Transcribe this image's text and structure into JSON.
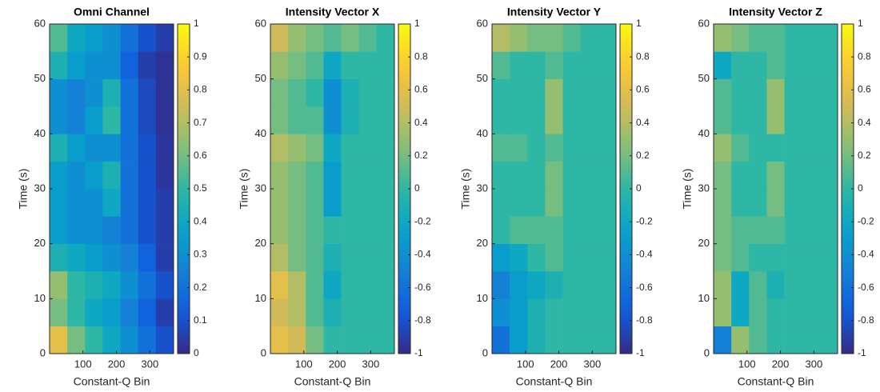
{
  "chart_data": [
    {
      "type": "heatmap",
      "title": "Omni Channel",
      "xlabel": "Constant-Q Bin",
      "ylabel": "Time (s)",
      "colormap": "parula",
      "x": [
        26.5,
        79.5,
        132.5,
        185.5,
        238.5,
        291.5,
        344.5
      ],
      "y": [
        2.5,
        7.5,
        12.5,
        17.5,
        22.5,
        27.5,
        32.5,
        37.5,
        42.5,
        47.5,
        52.5,
        57.5
      ],
      "values": [
        [
          0.8,
          0.6,
          0.5,
          0.4,
          0.3,
          0.2,
          0.1
        ],
        [
          0.6,
          0.5,
          0.4,
          0.35,
          0.25,
          0.15,
          0.05
        ],
        [
          0.65,
          0.5,
          0.45,
          0.4,
          0.3,
          0.2,
          0.1
        ],
        [
          0.45,
          0.4,
          0.35,
          0.3,
          0.25,
          0.15,
          0.05
        ],
        [
          0.35,
          0.3,
          0.3,
          0.25,
          0.2,
          0.1,
          0.05
        ],
        [
          0.35,
          0.3,
          0.3,
          0.4,
          0.2,
          0.1,
          0.05
        ],
        [
          0.35,
          0.3,
          0.35,
          0.45,
          0.2,
          0.1,
          0.03
        ],
        [
          0.45,
          0.35,
          0.3,
          0.3,
          0.2,
          0.1,
          0.03
        ],
        [
          0.3,
          0.25,
          0.35,
          0.5,
          0.2,
          0.08,
          0.02
        ],
        [
          0.3,
          0.25,
          0.3,
          0.45,
          0.2,
          0.08,
          0.02
        ],
        [
          0.45,
          0.35,
          0.3,
          0.3,
          0.15,
          0.05,
          0.02
        ],
        [
          0.55,
          0.4,
          0.35,
          0.3,
          0.2,
          0.1,
          0.05
        ]
      ],
      "xlim": [
        0,
        371
      ],
      "ylim": [
        0,
        60
      ],
      "xticks": [
        100,
        200,
        300
      ],
      "yticks": [
        0,
        10,
        20,
        30,
        40,
        50,
        60
      ],
      "clim": [
        0,
        1
      ],
      "cticks": [
        0,
        0.1,
        0.2,
        0.3,
        0.4,
        0.5,
        0.6,
        0.7,
        0.8,
        0.9,
        1
      ]
    },
    {
      "type": "heatmap",
      "title": "Intensity Vector X",
      "xlabel": "Constant-Q Bin",
      "ylabel": "Time (s)",
      "colormap": "parula",
      "x": [
        26.5,
        79.5,
        132.5,
        185.5,
        238.5,
        291.5,
        344.5
      ],
      "y": [
        2.5,
        7.5,
        12.5,
        17.5,
        22.5,
        27.5,
        32.5,
        37.5,
        42.5,
        47.5,
        52.5,
        57.5
      ],
      "values": [
        [
          0.6,
          0.5,
          0.2,
          0,
          0,
          0,
          0
        ],
        [
          0.5,
          0.4,
          0.1,
          -0.1,
          0,
          0,
          0
        ],
        [
          0.6,
          0.4,
          0.1,
          -0.2,
          0,
          0,
          0
        ],
        [
          0.4,
          0.2,
          0.1,
          -0.1,
          0,
          0,
          0
        ],
        [
          0.3,
          0.2,
          0.1,
          0,
          0,
          0,
          0
        ],
        [
          0.3,
          0.2,
          0.1,
          -0.3,
          0,
          0,
          0
        ],
        [
          0.3,
          0.2,
          0.1,
          -0.3,
          0,
          0,
          0
        ],
        [
          0.4,
          0.3,
          0.2,
          -0.2,
          0,
          0,
          0
        ],
        [
          0.2,
          0.1,
          0.1,
          -0.4,
          -0.1,
          0,
          0
        ],
        [
          0.2,
          0.1,
          0,
          -0.4,
          -0.1,
          0,
          0
        ],
        [
          0.3,
          0.2,
          0.1,
          -0.2,
          0,
          0,
          0
        ],
        [
          0.5,
          0.3,
          0.2,
          0.1,
          0.2,
          0.1,
          0
        ]
      ],
      "xlim": [
        0,
        371
      ],
      "ylim": [
        0,
        60
      ],
      "xticks": [
        100,
        200,
        300
      ],
      "yticks": [
        0,
        10,
        20,
        30,
        40,
        50,
        60
      ],
      "clim": [
        -1,
        1
      ],
      "cticks": [
        -1,
        -0.8,
        -0.6,
        -0.4,
        -0.2,
        0,
        0.2,
        0.4,
        0.6,
        0.8,
        1
      ]
    },
    {
      "type": "heatmap",
      "title": "Intensity Vector Y",
      "xlabel": "Constant-Q Bin",
      "ylabel": "Time (s)",
      "colormap": "parula",
      "x": [
        26.5,
        79.5,
        132.5,
        185.5,
        238.5,
        291.5,
        344.5
      ],
      "y": [
        2.5,
        7.5,
        12.5,
        17.5,
        22.5,
        27.5,
        32.5,
        37.5,
        42.5,
        47.5,
        52.5,
        57.5
      ],
      "values": [
        [
          -0.6,
          -0.3,
          -0.1,
          0,
          0,
          0,
          0
        ],
        [
          -0.4,
          -0.3,
          -0.1,
          0,
          0,
          0,
          0
        ],
        [
          -0.5,
          -0.3,
          -0.2,
          -0.1,
          0,
          0,
          0
        ],
        [
          -0.3,
          -0.2,
          0,
          0.1,
          0,
          0,
          0
        ],
        [
          0,
          0.1,
          0.1,
          0.1,
          0,
          0,
          0
        ],
        [
          0,
          0,
          0,
          0.2,
          0,
          0,
          0
        ],
        [
          0,
          0,
          0,
          0.2,
          0,
          0,
          0
        ],
        [
          0.1,
          0.1,
          0,
          0.1,
          0,
          0,
          0
        ],
        [
          0,
          0,
          0,
          0.3,
          0,
          0,
          0
        ],
        [
          0,
          0,
          0,
          0.3,
          0,
          0,
          0
        ],
        [
          0.1,
          0,
          0,
          0.1,
          0,
          0,
          0
        ],
        [
          0.4,
          0.3,
          0.2,
          0.2,
          0.1,
          0,
          0
        ]
      ],
      "xlim": [
        0,
        371
      ],
      "ylim": [
        0,
        60
      ],
      "xticks": [
        100,
        200,
        300
      ],
      "yticks": [
        0,
        10,
        20,
        30,
        40,
        50,
        60
      ],
      "clim": [
        -1,
        1
      ],
      "cticks": [
        -1,
        -0.8,
        -0.6,
        -0.4,
        -0.2,
        0,
        0.2,
        0.4,
        0.6,
        0.8,
        1
      ]
    },
    {
      "type": "heatmap",
      "title": "Intensity Vector Z",
      "xlabel": "Constant-Q Bin",
      "ylabel": "Time (s)",
      "colormap": "parula",
      "x": [
        26.5,
        79.5,
        132.5,
        185.5,
        238.5,
        291.5,
        344.5
      ],
      "y": [
        2.5,
        7.5,
        12.5,
        17.5,
        22.5,
        27.5,
        32.5,
        37.5,
        42.5,
        47.5,
        52.5,
        57.5
      ],
      "values": [
        [
          -0.5,
          0.3,
          0.1,
          0,
          0,
          0,
          0
        ],
        [
          0.3,
          -0.2,
          0.1,
          0,
          0,
          0,
          0
        ],
        [
          0.3,
          -0.2,
          0.1,
          -0.1,
          0,
          0,
          0
        ],
        [
          0.2,
          0.1,
          0,
          0,
          0,
          0,
          0
        ],
        [
          0.2,
          0.1,
          0.1,
          0.1,
          0,
          0,
          0
        ],
        [
          0.2,
          0,
          0,
          0.2,
          0,
          0,
          0
        ],
        [
          0.2,
          0,
          0,
          0.2,
          0,
          0,
          0
        ],
        [
          0.3,
          0.1,
          0,
          0,
          0,
          0,
          0
        ],
        [
          0.1,
          0,
          0,
          0.3,
          0,
          0,
          0
        ],
        [
          0.1,
          0,
          0,
          0.3,
          0,
          0,
          0
        ],
        [
          -0.2,
          0,
          0,
          0.1,
          0,
          0,
          0
        ],
        [
          0.3,
          0.2,
          0.1,
          0.1,
          0,
          0,
          0
        ]
      ],
      "xlim": [
        0,
        371
      ],
      "ylim": [
        0,
        60
      ],
      "xticks": [
        100,
        200,
        300
      ],
      "yticks": [
        0,
        10,
        20,
        30,
        40,
        50,
        60
      ],
      "clim": [
        -1,
        1
      ],
      "cticks": [
        -1,
        -0.8,
        -0.6,
        -0.4,
        -0.2,
        0,
        0.2,
        0.4,
        0.6,
        0.8,
        1
      ]
    }
  ]
}
